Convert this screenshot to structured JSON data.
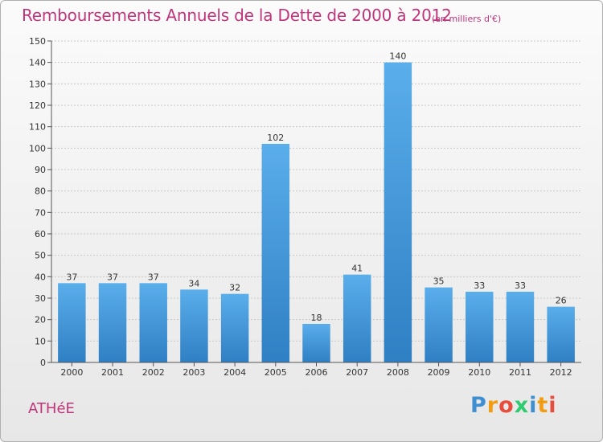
{
  "header": {
    "title": "Remboursements Annuels de la Dette de 2000 à 2012",
    "unit": "(en milliers d'€)"
  },
  "footer": {
    "commune": "ATHéE",
    "brand_letters": [
      "P",
      "r",
      "o",
      "x",
      "i",
      "t",
      "i"
    ],
    "brand_colors": [
      "#3d8fd1",
      "#f39c12",
      "#e74c3c",
      "#2ecc71",
      "#3d8fd1",
      "#f39c12",
      "#e74c3c"
    ]
  },
  "colors": {
    "bar": "#4a9fe0",
    "bar_dark": "#2f7fc4",
    "accent": "#c0357a"
  },
  "chart_data": {
    "type": "bar",
    "title": "Remboursements Annuels de la Dette de 2000 à 2012",
    "subtitle": "(en milliers d'€)",
    "categories": [
      "2000",
      "2001",
      "2002",
      "2003",
      "2004",
      "2005",
      "2006",
      "2007",
      "2008",
      "2009",
      "2010",
      "2011",
      "2012"
    ],
    "values": [
      37,
      37,
      37,
      34,
      32,
      102,
      18,
      41,
      140,
      35,
      33,
      33,
      26
    ],
    "ylim": [
      0,
      150
    ],
    "yticks": [
      0,
      10,
      20,
      30,
      40,
      50,
      60,
      70,
      80,
      90,
      100,
      110,
      120,
      130,
      140,
      150
    ],
    "grid": true,
    "legend": "none",
    "data_labels": true
  }
}
